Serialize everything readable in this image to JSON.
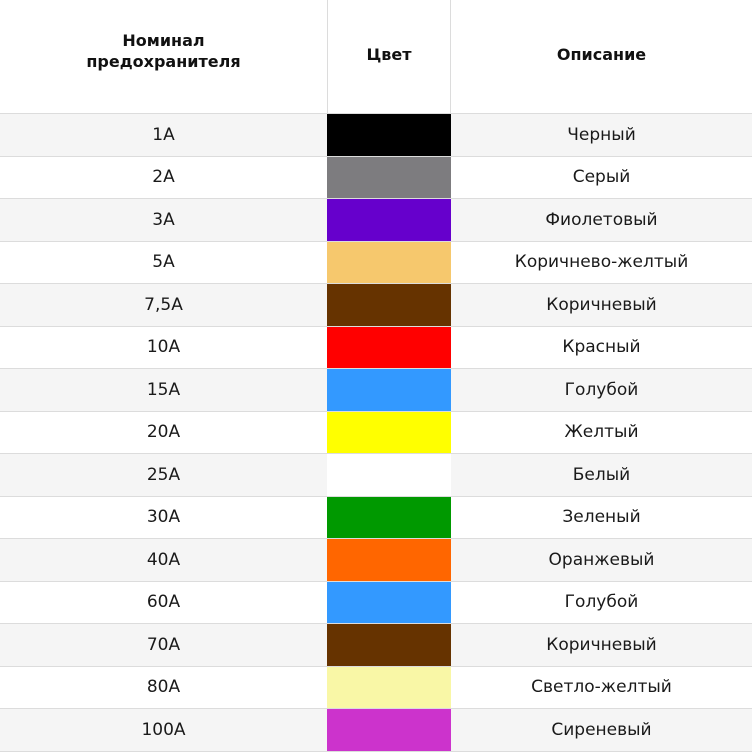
{
  "table": {
    "headers": {
      "rating": "Номинал\nпредохранителя",
      "color": "Цвет",
      "description": "Описание"
    },
    "rows": [
      {
        "rating": "1A",
        "color": "#000000",
        "description": "Черный"
      },
      {
        "rating": "2A",
        "color": "#7d7c7f",
        "description": "Серый"
      },
      {
        "rating": "3A",
        "color": "#6600cc",
        "description": "Фиолетовый"
      },
      {
        "rating": "5A",
        "color": "#f6c86d",
        "description": "Коричнево-желтый"
      },
      {
        "rating": "7,5A",
        "color": "#663300",
        "description": "Коричневый"
      },
      {
        "rating": "10A",
        "color": "#ff0000",
        "description": "Красный"
      },
      {
        "rating": "15A",
        "color": "#3399ff",
        "description": "Голубой"
      },
      {
        "rating": "20A",
        "color": "#ffff00",
        "description": "Желтый"
      },
      {
        "rating": "25A",
        "color": "#ffffff",
        "description": "Белый"
      },
      {
        "rating": "30A",
        "color": "#009900",
        "description": "Зеленый"
      },
      {
        "rating": "40A",
        "color": "#ff6600",
        "description": "Оранжевый"
      },
      {
        "rating": "60A",
        "color": "#3399ff",
        "description": "Голубой"
      },
      {
        "rating": "70A",
        "color": "#663300",
        "description": "Коричневый"
      },
      {
        "rating": "80A",
        "color": "#f9f7a6",
        "description": "Светло-желтый"
      },
      {
        "rating": "100A",
        "color": "#cc33cc",
        "description": "Сиреневый"
      }
    ]
  }
}
